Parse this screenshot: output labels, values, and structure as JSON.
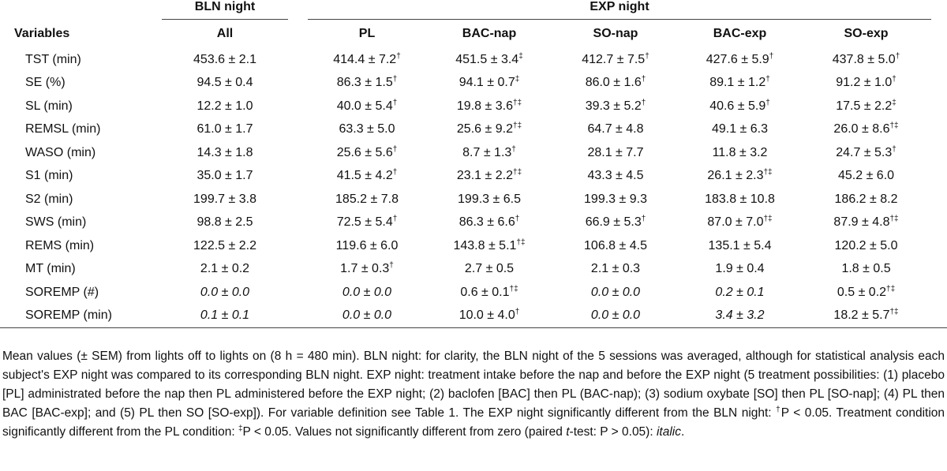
{
  "table": {
    "groups": [
      {
        "label": "BLN night",
        "span": 1
      },
      {
        "label": "EXP night",
        "span": 5
      }
    ],
    "columns": [
      "Variables",
      "All",
      "PL",
      "BAC-nap",
      "SO-nap",
      "BAC-exp",
      "SO-exp"
    ],
    "rows": [
      {
        "label": "TST (min)",
        "cells": [
          "453.6 ± 2.1",
          {
            "text": "414.4 ± 7.2",
            "sup": "†"
          },
          {
            "text": "451.5 ± 3.4",
            "sup": "‡"
          },
          {
            "text": "412.7 ± 7.5",
            "sup": "†"
          },
          {
            "text": "427.6 ± 5.9",
            "sup": "†"
          },
          {
            "text": "437.8 ± 5.0",
            "sup": "†"
          }
        ]
      },
      {
        "label": "SE (%)",
        "cells": [
          "94.5 ± 0.4",
          {
            "text": "86.3 ± 1.5",
            "sup": "†"
          },
          {
            "text": "94.1 ± 0.7",
            "sup": "‡"
          },
          {
            "text": "86.0 ± 1.6",
            "sup": "†"
          },
          {
            "text": "89.1 ± 1.2",
            "sup": "†"
          },
          {
            "text": "91.2 ± 1.0",
            "sup": "†"
          }
        ]
      },
      {
        "label": "SL (min)",
        "cells": [
          "12.2 ± 1.0",
          {
            "text": "40.0 ± 5.4",
            "sup": "†"
          },
          {
            "text": "19.8 ± 3.6",
            "sup": "†‡"
          },
          {
            "text": "39.3 ± 5.2",
            "sup": "†"
          },
          {
            "text": "40.6 ± 5.9",
            "sup": "†"
          },
          {
            "text": "17.5 ± 2.2",
            "sup": "‡"
          }
        ]
      },
      {
        "label": "REMSL (min)",
        "cells": [
          "61.0 ± 1.7",
          "63.3 ± 5.0",
          {
            "text": "25.6 ± 9.2",
            "sup": "†‡"
          },
          "64.7 ± 4.8",
          "49.1 ± 6.3",
          {
            "text": "26.0 ± 8.6",
            "sup": "†‡"
          }
        ]
      },
      {
        "label": "WASO (min)",
        "cells": [
          "14.3 ± 1.8",
          {
            "text": "25.6 ± 5.6",
            "sup": "†"
          },
          {
            "text": "8.7 ± 1.3",
            "sup": "†"
          },
          "28.1 ± 7.7",
          "11.8 ± 3.2",
          {
            "text": "24.7 ± 5.3",
            "sup": "†"
          }
        ]
      },
      {
        "label": "S1 (min)",
        "cells": [
          "35.0 ± 1.7",
          {
            "text": "41.5 ± 4.2",
            "sup": "†"
          },
          {
            "text": "23.1 ± 2.2",
            "sup": "†‡"
          },
          "43.3 ± 4.5",
          {
            "text": "26.1 ± 2.3",
            "sup": "†‡"
          },
          "45.2 ± 6.0"
        ]
      },
      {
        "label": "S2 (min)",
        "cells": [
          "199.7 ± 3.8",
          "185.2 ± 7.8",
          "199.3 ± 6.5",
          "199.3 ± 9.3",
          "183.8 ± 10.8",
          "186.2 ± 8.2"
        ]
      },
      {
        "label": "SWS (min)",
        "cells": [
          "98.8 ± 2.5",
          {
            "text": "72.5 ± 5.4",
            "sup": "†"
          },
          {
            "text": "86.3 ± 6.6",
            "sup": "†"
          },
          {
            "text": "66.9 ± 5.3",
            "sup": "†"
          },
          {
            "text": "87.0 ± 7.0",
            "sup": "†‡"
          },
          {
            "text": "87.9 ± 4.8",
            "sup": "†‡"
          }
        ]
      },
      {
        "label": "REMS (min)",
        "cells": [
          "122.5 ± 2.2",
          "119.6 ± 6.0",
          {
            "text": "143.8 ± 5.1",
            "sup": "†‡"
          },
          "106.8 ± 4.5",
          "135.1 ± 5.4",
          "120.2 ± 5.0"
        ]
      },
      {
        "label": "MT (min)",
        "cells": [
          "2.1 ± 0.2",
          {
            "text": "1.7 ± 0.3",
            "sup": "†"
          },
          "2.7 ± 0.5",
          "2.1 ± 0.3",
          "1.9 ± 0.4",
          "1.8 ± 0.5"
        ]
      },
      {
        "label": "SOREMP (#)",
        "cells": [
          {
            "text": "0.0 ± 0.0",
            "italic": true
          },
          {
            "text": "0.0 ± 0.0",
            "italic": true
          },
          {
            "text": "0.6 ± 0.1",
            "sup": "†‡"
          },
          {
            "text": "0.0 ± 0.0",
            "italic": true
          },
          {
            "text": "0.2 ± 0.1",
            "italic": true
          },
          {
            "text": "0.5 ± 0.2",
            "sup": "†‡"
          }
        ]
      },
      {
        "label": "SOREMP (min)",
        "cells": [
          {
            "text": "0.1 ± 0.1",
            "italic": true
          },
          {
            "text": "0.0 ± 0.0",
            "italic": true
          },
          {
            "text": "10.0 ± 4.0",
            "sup": "†"
          },
          {
            "text": "0.0 ± 0.0",
            "italic": true
          },
          {
            "text": "3.4 ± 3.2",
            "italic": true
          },
          {
            "text": "18.2 ± 5.7",
            "sup": "†‡"
          }
        ]
      }
    ]
  },
  "note": [
    {
      "text": "Mean values (± SEM) from lights off to lights on (8 h = 480 min). BLN night: for clarity, the BLN night of the 5 sessions was averaged, although for statistical analysis each subject's EXP night was compared to its corresponding BLN night. EXP night: treatment intake before the nap and before the EXP night (5 treatment possibilities: (1) placebo [PL] administrated before the nap then PL administered before the EXP night; (2) baclofen [BAC] then PL (BAC-nap); (3) sodium oxybate [SO] then PL [SO-nap]; (4) PL then BAC [BAC-exp]; and (5) PL then SO [SO-exp]). For variable definition see Table 1. The EXP night significantly different from the BLN night: "
    },
    {
      "text": "†",
      "style": "sup"
    },
    {
      "text": "P < 0.05. Treatment condition significantly different from the PL condition: "
    },
    {
      "text": "‡",
      "style": "sup"
    },
    {
      "text": "P < 0.05. Values not significantly different from zero (paired "
    },
    {
      "text": "t",
      "style": "italic"
    },
    {
      "text": "-test: P > 0.05): "
    },
    {
      "text": "italic",
      "style": "italic"
    },
    {
      "text": "."
    }
  ]
}
